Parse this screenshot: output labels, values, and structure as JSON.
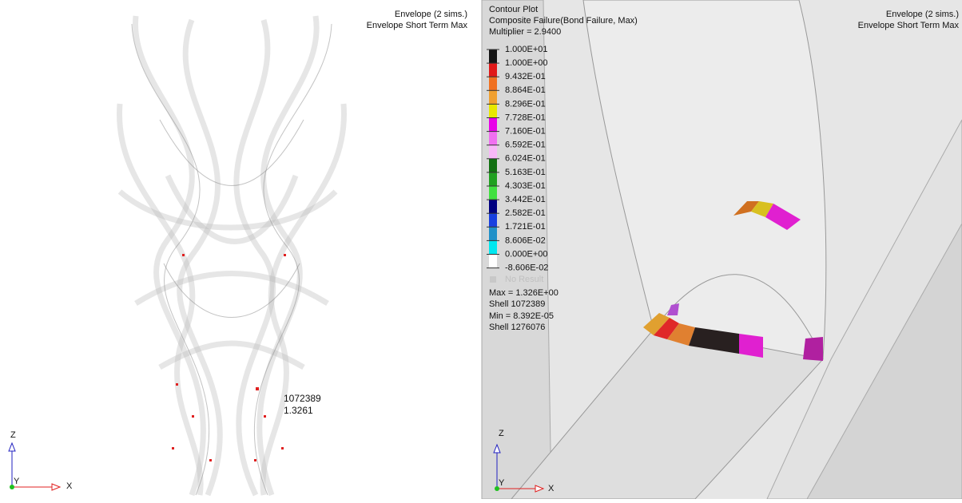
{
  "left_view": {
    "header": [
      "Envelope (2 sims.)",
      "Envelope Short Term Max"
    ],
    "probe": [
      "1072389",
      "1.3261"
    ],
    "triad": {
      "z": "Z",
      "y": "Y",
      "x": "X"
    }
  },
  "right_view": {
    "header": [
      "Envelope (2 sims.)",
      "Envelope Short Term Max"
    ],
    "contour": {
      "title": "Contour Plot",
      "subtitle": "Composite Failure(Bond Failure, Max)",
      "multiplier": "Multiplier = 2.9400",
      "levels": [
        "1.000E+01",
        "1.000E+00",
        "9.432E-01",
        "8.864E-01",
        "8.296E-01",
        "7.728E-01",
        "7.160E-01",
        "6.592E-01",
        "6.024E-01",
        "5.163E-01",
        "4.303E-01",
        "3.442E-01",
        "2.582E-01",
        "1.721E-01",
        "8.606E-02",
        "0.000E+00",
        "-8.606E-02"
      ],
      "colors": [
        "#141414",
        "#e01818",
        "#f07020",
        "#f0a030",
        "#e8e800",
        "#e800e8",
        "#f070f0",
        "#f8b8f8",
        "#107010",
        "#20a020",
        "#40e040",
        "#000080",
        "#1840e0",
        "#2090c8",
        "#00e8f0",
        "#ffffff"
      ],
      "no_result": "No Result",
      "max": "Max =  1.326E+00",
      "max_shell": "Shell 1072389",
      "min": "Min =  8.392E-05",
      "min_shell": "Shell 1276076"
    },
    "triad": {
      "z": "Z",
      "y": "Y",
      "x": "X"
    }
  }
}
